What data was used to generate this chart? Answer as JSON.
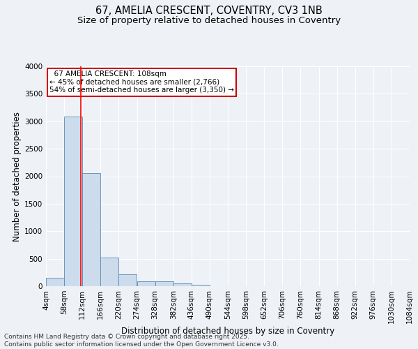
{
  "title_line1": "67, AMELIA CRESCENT, COVENTRY, CV3 1NB",
  "title_line2": "Size of property relative to detached houses in Coventry",
  "xlabel": "Distribution of detached houses by size in Coventry",
  "ylabel": "Number of detached properties",
  "annotation_line1": "  67 AMELIA CRESCENT: 108sqm  ",
  "annotation_line2": "← 45% of detached houses are smaller (2,766)",
  "annotation_line3": "54% of semi-detached houses are larger (3,350) →",
  "footer_line1": "Contains HM Land Registry data © Crown copyright and database right 2025.",
  "footer_line2": "Contains public sector information licensed under the Open Government Licence v3.0.",
  "bar_color": "#ccdcec",
  "bar_edge_color": "#5a8ab0",
  "red_line_x": 108,
  "bin_edges": [
    4,
    58,
    112,
    166,
    220,
    274,
    328,
    382,
    436,
    490,
    544,
    598,
    652,
    706,
    760,
    814,
    868,
    922,
    976,
    1030,
    1084
  ],
  "bin_labels": [
    "4sqm",
    "58sqm",
    "112sqm",
    "166sqm",
    "220sqm",
    "274sqm",
    "328sqm",
    "382sqm",
    "436sqm",
    "490sqm",
    "544sqm",
    "598sqm",
    "652sqm",
    "706sqm",
    "760sqm",
    "814sqm",
    "868sqm",
    "922sqm",
    "976sqm",
    "1030sqm",
    "1084sqm"
  ],
  "counts": [
    150,
    3080,
    2060,
    520,
    220,
    90,
    90,
    50,
    30,
    0,
    0,
    0,
    0,
    0,
    0,
    0,
    0,
    0,
    0,
    0
  ],
  "ylim": [
    0,
    4000
  ],
  "yticks": [
    0,
    500,
    1000,
    1500,
    2000,
    2500,
    3000,
    3500,
    4000
  ],
  "background_color": "#eef2f7",
  "grid_color": "#ffffff",
  "annotation_box_facecolor": "#ffffff",
  "annotation_box_edgecolor": "#cc0000",
  "title_fontsize": 10.5,
  "subtitle_fontsize": 9.5,
  "axis_label_fontsize": 8.5,
  "tick_fontsize": 7.5,
  "annot_fontsize": 7.5,
  "footer_fontsize": 6.5
}
